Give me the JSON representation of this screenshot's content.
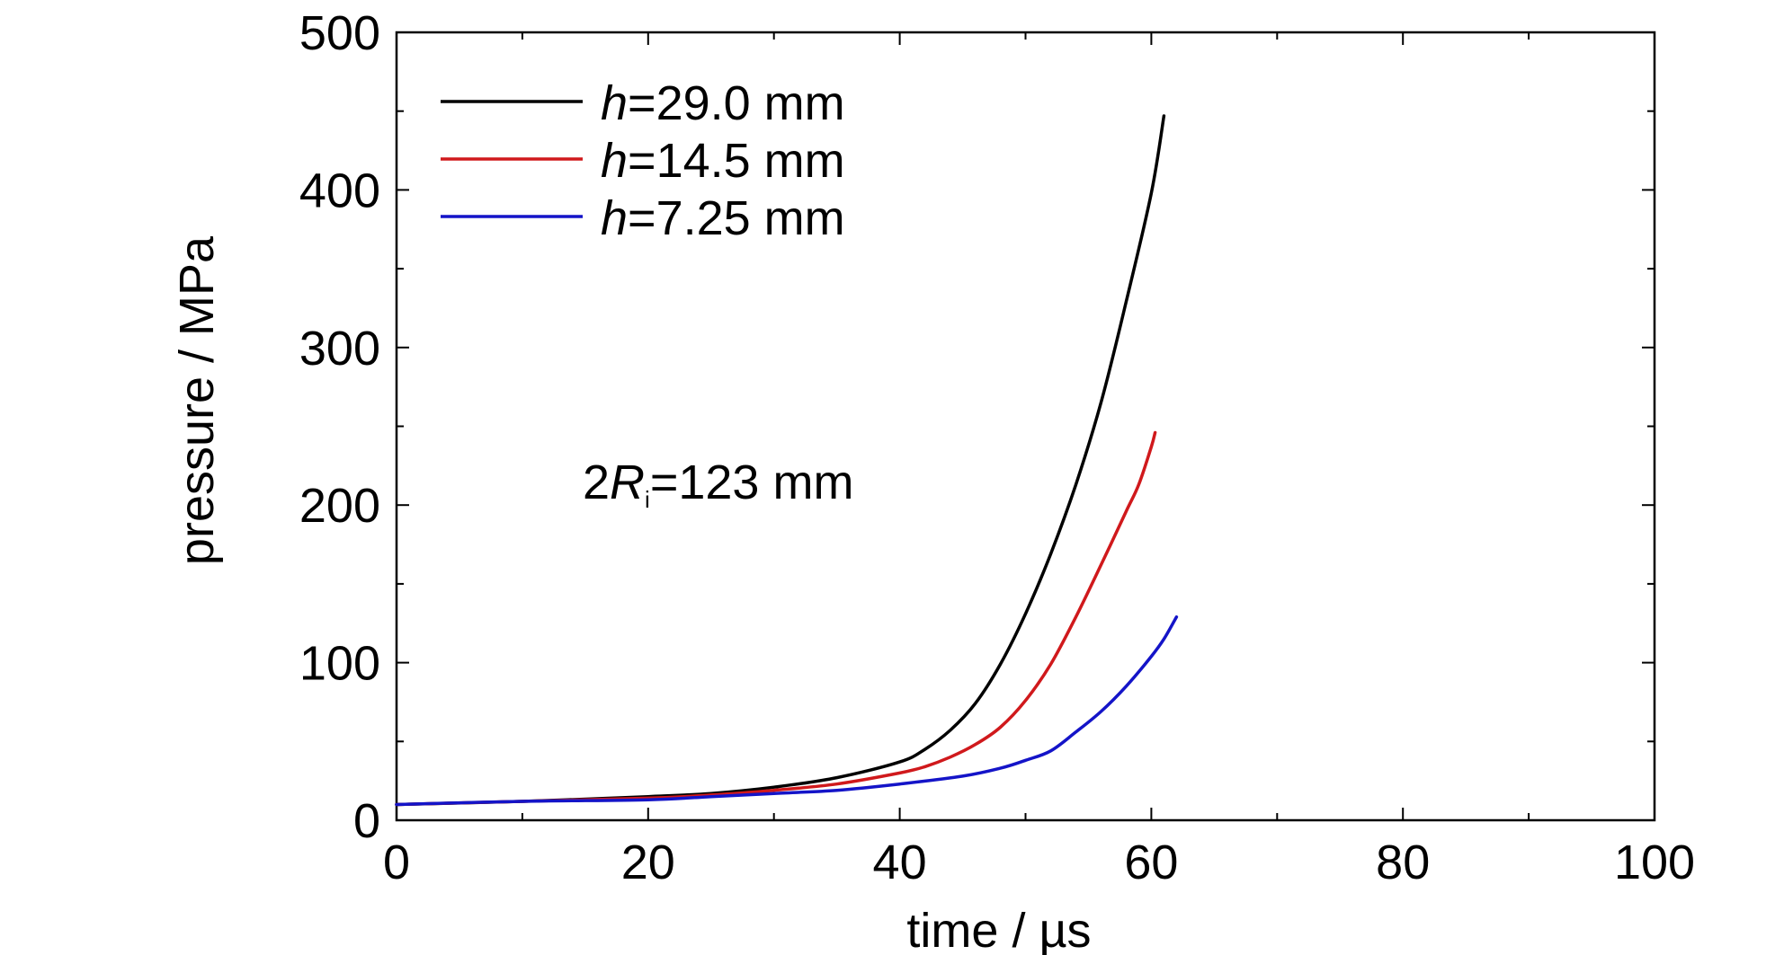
{
  "chart_data": {
    "type": "line",
    "xlabel": "time / µs",
    "ylabel": "pressure / MPa",
    "xlim": [
      0,
      100
    ],
    "ylim": [
      0,
      500
    ],
    "x_ticks": [
      "0",
      "20",
      "40",
      "60",
      "80",
      "100"
    ],
    "y_ticks": [
      "0",
      "100",
      "200",
      "300",
      "400",
      "500"
    ],
    "grid": false,
    "legend_position": "top-left",
    "annotation": {
      "prefix": "2",
      "var": "R",
      "sub": "i",
      "rest": "=123 mm"
    },
    "series": [
      {
        "name": "h=29.0 mm",
        "label_var": "h",
        "label_rest": "=29.0 mm",
        "color": "#000000",
        "x": [
          0,
          10,
          20,
          25,
          30,
          35,
          40,
          42,
          44,
          46,
          48,
          50,
          52,
          54,
          56,
          58,
          60,
          61
        ],
        "y": [
          10,
          12,
          15,
          17,
          21,
          27,
          37,
          45,
          57,
          74,
          99,
          131,
          169,
          213,
          265,
          329,
          398,
          447
        ]
      },
      {
        "name": "h=14.5 mm",
        "label_var": "h",
        "label_rest": "=14.5 mm",
        "color": "#d0191c",
        "x": [
          0,
          10,
          20,
          25,
          30,
          35,
          40,
          42,
          44,
          46,
          48,
          50,
          52,
          54,
          56,
          58,
          59,
          60,
          60.3
        ],
        "y": [
          10,
          12,
          14,
          16,
          19,
          23,
          30,
          34,
          40,
          48,
          59,
          76,
          99,
          129,
          162,
          196,
          213,
          237,
          246
        ]
      },
      {
        "name": "h=7.25 mm",
        "label_var": "h",
        "label_rest": "=7.25 mm",
        "color": "#1414c8",
        "x": [
          0,
          10,
          20,
          25,
          30,
          35,
          40,
          45,
          48,
          50,
          52,
          54,
          56,
          58,
          60,
          61,
          62
        ],
        "y": [
          10,
          12,
          13,
          15,
          17,
          19,
          23,
          28,
          33,
          38,
          44,
          56,
          69,
          85,
          104,
          115,
          129
        ]
      }
    ]
  }
}
